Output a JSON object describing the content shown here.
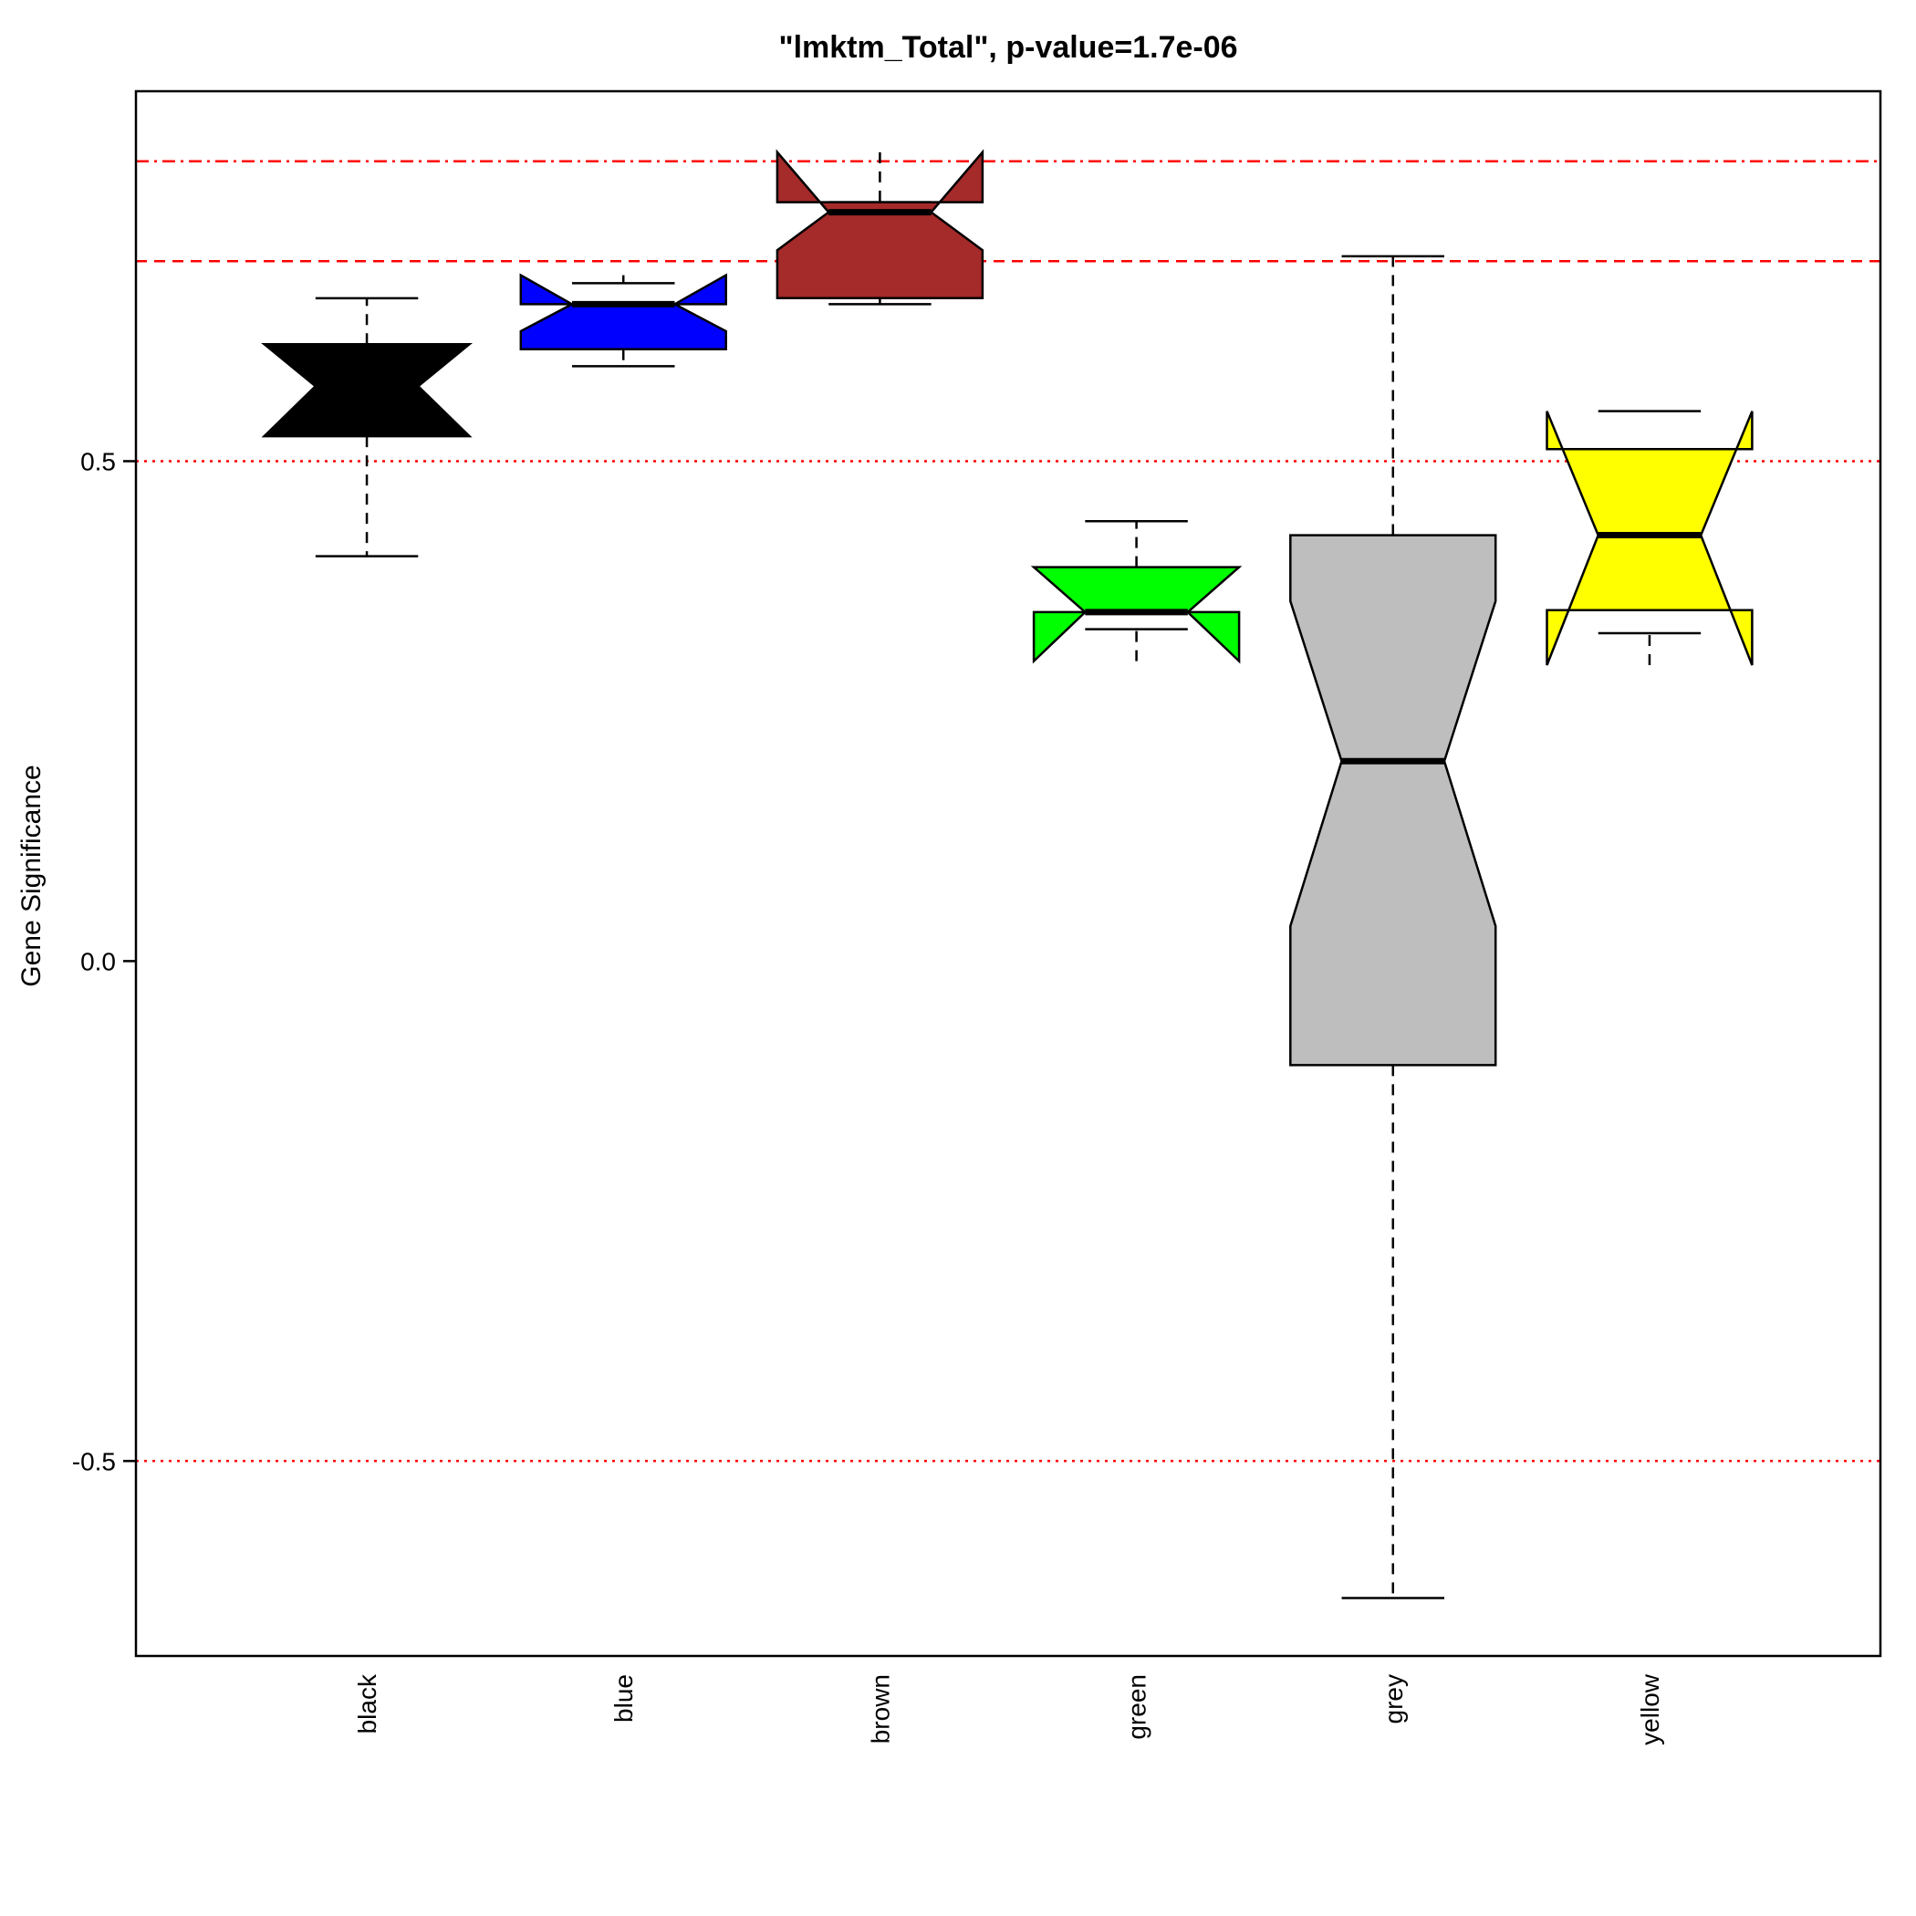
{
  "chart_data": {
    "type": "box",
    "title": "\"lmktm_Total\", p-value=1.7e-06",
    "xlabel": "",
    "ylabel": "Gene Significance",
    "ylim": [
      -0.695,
      0.87
    ],
    "y_ticks": [
      {
        "value": 0.5,
        "label": "0.5"
      },
      {
        "value": 0.0,
        "label": "0.0"
      },
      {
        "value": -0.5,
        "label": "-0.5"
      }
    ],
    "reference_lines": [
      {
        "value": 0.8,
        "style": "dashdot",
        "color": "#ff0000"
      },
      {
        "value": 0.7,
        "style": "dashed",
        "color": "#ff0000"
      },
      {
        "value": 0.5,
        "style": "dotted",
        "color": "#ff0000"
      },
      {
        "value": -0.5,
        "style": "dotted",
        "color": "#ff0000"
      }
    ],
    "categories": [
      "black",
      "blue",
      "brown",
      "green",
      "grey",
      "yellow"
    ],
    "boxes": [
      {
        "name": "black",
        "fill": "#000000",
        "whisker_low": 0.405,
        "q1": 0.525,
        "median": 0.575,
        "q3": 0.617,
        "whisker_high": 0.663,
        "notch_low": 0.525,
        "notch_high": 0.617
      },
      {
        "name": "blue",
        "fill": "#0000ff",
        "whisker_low": 0.595,
        "q1": 0.612,
        "median": 0.657,
        "q3": 0.657,
        "whisker_high": 0.678,
        "notch_low": 0.63,
        "notch_high": 0.686
      },
      {
        "name": "brown",
        "fill": "#a52a2a",
        "whisker_low": 0.657,
        "q1": 0.663,
        "median": 0.749,
        "q3": 0.759,
        "whisker_high": 0.759,
        "notch_low": 0.711,
        "notch_high": 0.809
      },
      {
        "name": "green",
        "fill": "#00ff00",
        "whisker_low": 0.332,
        "q1": 0.349,
        "median": 0.349,
        "q3": 0.394,
        "whisker_high": 0.44,
        "notch_low": 0.3,
        "notch_high": 0.394
      },
      {
        "name": "grey",
        "fill": "#bebebe",
        "whisker_low": -0.637,
        "q1": -0.104,
        "median": 0.2,
        "q3": 0.426,
        "whisker_high": 0.705,
        "notch_low": 0.035,
        "notch_high": 0.36
      },
      {
        "name": "yellow",
        "fill": "#ffff00",
        "whisker_low": 0.328,
        "q1": 0.351,
        "median": 0.426,
        "q3": 0.512,
        "whisker_high": 0.55,
        "notch_low": 0.296,
        "notch_high": 0.55
      }
    ]
  }
}
